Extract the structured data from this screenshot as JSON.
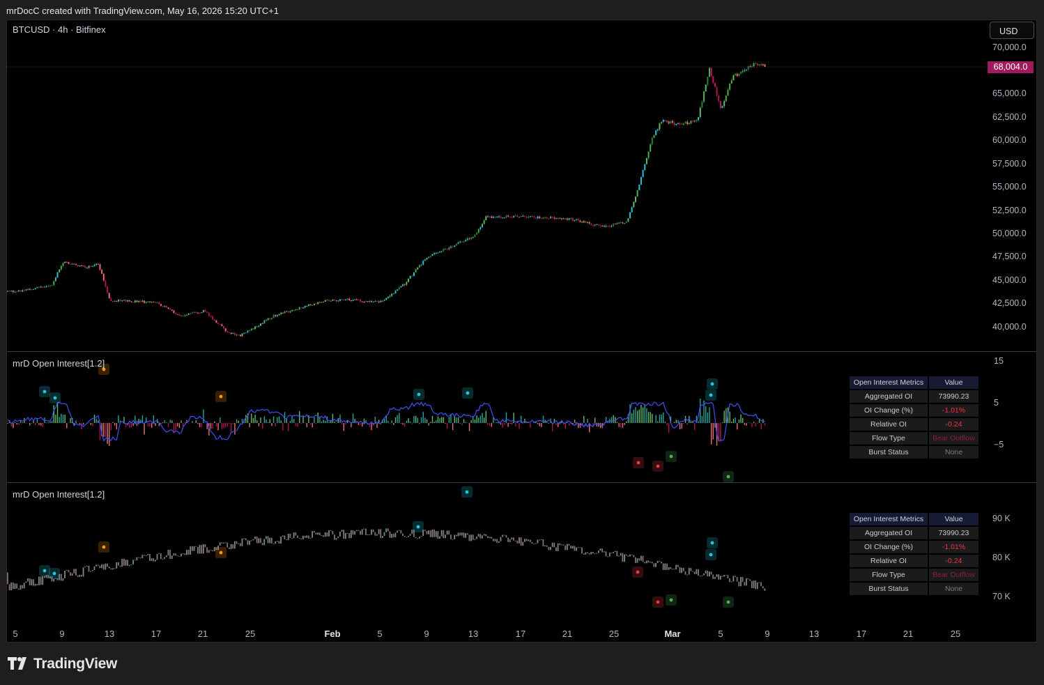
{
  "header": {
    "caption": "mrDocC created with TradingView.com, May 16, 2026 15:20 UTC+1"
  },
  "main_pane": {
    "symbol": "BTCUSD · 4h · Bitfinex",
    "currency_button": "USD",
    "last_price": "68,004.0",
    "price_axis": [
      "70,000.0",
      "65,000.0",
      "62,500.0",
      "60,000.0",
      "57,500.0",
      "55,000.0",
      "52,500.0",
      "50,000.0",
      "47,500.0",
      "45,000.0",
      "42,500.0",
      "40,000.0"
    ],
    "colors": {
      "last_price_tag": "#a21a5e",
      "bull": "#4caf50",
      "bear": "#f06c6c",
      "accent": "#26c6da"
    }
  },
  "indicator_1": {
    "title": "mrD Open Interest[1.2]",
    "axis": [
      "15",
      "5",
      "−5"
    ],
    "table": {
      "header": [
        "Open Interest Metrics",
        "Value"
      ],
      "rows": [
        {
          "label": "Aggregated OI",
          "value": "73990.23",
          "color": "#c8cbd3"
        },
        {
          "label": "OI Change (%)",
          "value": "-1.01%",
          "color": "#f23645"
        },
        {
          "label": "Relative OI",
          "value": "-0.24",
          "color": "#f23645"
        },
        {
          "label": "Flow Type",
          "value": "Bear Outflow",
          "color": "#8b1c4d"
        },
        {
          "label": "Burst Status",
          "value": "None",
          "color": "#787b86"
        }
      ]
    }
  },
  "indicator_2": {
    "title": "mrD Open Interest[1.2]",
    "axis": [
      "90 K",
      "80 K",
      "70 K"
    ],
    "table": {
      "header": [
        "Open Interest Metrics",
        "Value"
      ],
      "rows": [
        {
          "label": "Aggregated OI",
          "value": "73990.23",
          "color": "#c8cbd3"
        },
        {
          "label": "OI Change (%)",
          "value": "-1.01%",
          "color": "#f23645"
        },
        {
          "label": "Relative OI",
          "value": "-0.24",
          "color": "#f23645"
        },
        {
          "label": "Flow Type",
          "value": "Bear Outflow",
          "color": "#8b1c4d"
        },
        {
          "label": "Burst Status",
          "value": "None",
          "color": "#787b86"
        }
      ]
    }
  },
  "time_axis": [
    "5",
    "9",
    "13",
    "17",
    "21",
    "25",
    "Feb",
    "5",
    "9",
    "13",
    "17",
    "21",
    "25",
    "Mar",
    "5",
    "9",
    "13",
    "17",
    "21",
    "25"
  ],
  "footer": {
    "brand": "TradingView"
  },
  "chart_data": {
    "type": "candlestick",
    "symbol": "BTCUSD",
    "timeframe": "4h",
    "exchange": "Bitfinex",
    "x_range": [
      "Jan 5",
      "Mar 9"
    ],
    "y_range": [
      38500,
      70500
    ],
    "close_path": [
      [
        "Jan 5",
        43900
      ],
      [
        "Jan 8",
        44500
      ],
      [
        "Jan 9",
        47000
      ],
      [
        "Jan 11",
        46500
      ],
      [
        "Jan 12",
        46900
      ],
      [
        "Jan 13",
        42900
      ],
      [
        "Jan 17",
        42700
      ],
      [
        "Jan 19",
        41200
      ],
      [
        "Jan 21",
        41800
      ],
      [
        "Jan 23",
        39500
      ],
      [
        "Jan 24",
        39100
      ],
      [
        "Jan 25",
        39800
      ],
      [
        "Jan 27",
        41300
      ],
      [
        "Jan 29",
        42000
      ],
      [
        "Jan 31",
        42800
      ],
      [
        "Feb 2",
        43000
      ],
      [
        "Feb 5",
        42700
      ],
      [
        "Feb 7",
        44600
      ],
      [
        "Feb 9",
        47500
      ],
      [
        "Feb 11",
        48700
      ],
      [
        "Feb 13",
        49800
      ],
      [
        "Feb 14",
        51800
      ],
      [
        "Feb 17",
        51900
      ],
      [
        "Feb 21",
        51700
      ],
      [
        "Feb 24",
        50800
      ],
      [
        "Feb 26",
        51300
      ],
      [
        "Feb 27",
        55000
      ],
      [
        "Feb 28",
        59800
      ],
      [
        "Feb 29",
        62300
      ],
      [
        "Mar 1",
        61800
      ],
      [
        "Mar 3",
        62100
      ],
      [
        "Mar 4",
        67800
      ],
      [
        "Mar 5",
        63500
      ],
      [
        "Mar 6",
        66800
      ],
      [
        "Mar 8",
        68300
      ],
      [
        "Mar 9",
        68004
      ]
    ],
    "last": 68004.0,
    "oi_delta_range": [
      -8,
      15
    ],
    "oi_range": [
      68000,
      96000
    ],
    "oi_last": 73990.23
  }
}
